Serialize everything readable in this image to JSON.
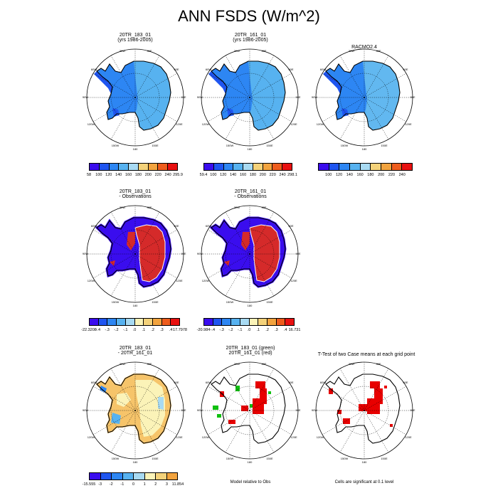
{
  "title": "ANN FSDS (W/m^2)",
  "colors": {
    "abs_scale": [
      "#3a0dee",
      "#1f55f0",
      "#2d86f3",
      "#57b2f0",
      "#a8daf2",
      "#f4d27a",
      "#f2a33e",
      "#ee5c1c",
      "#e81010",
      "#c41010",
      "#9a1a1a"
    ],
    "diff_scale": [
      "#3a0dee",
      "#1f55f0",
      "#2d86f3",
      "#57b2f0",
      "#a8daf2",
      "#fbf3b8",
      "#f4d27a",
      "#f2a33e",
      "#ee5c1c",
      "#e81010",
      "#c41010",
      "#9a1a1a"
    ],
    "grid": "#000000",
    "green": "#10c010",
    "red": "#e80000"
  },
  "lon_labels": [
    "30W",
    "30E",
    "60W",
    "60E",
    "90W",
    "90E",
    "120W",
    "120E",
    "150W",
    "150E",
    "180"
  ],
  "panels": [
    {
      "title": "20TR_183_01",
      "subtitle": "(yrs 1986-2005)",
      "fill": "abs"
    },
    {
      "title": "20TR_161_01",
      "subtitle": "(yrs 1986-2005)",
      "fill": "abs"
    },
    {
      "title": "RACMO2.4",
      "subtitle": "",
      "fill": "abs"
    },
    {
      "title": "20TR_183_01",
      "subtitle": "- Observations",
      "fill": "bias"
    },
    {
      "title": "20TR_161_01",
      "subtitle": "- Observations",
      "fill": "bias"
    },
    {
      "title": "20TR_183_01",
      "subtitle": "- 20TR_161_01",
      "fill": "diff"
    },
    {
      "title": "20TR_183_01 (green)",
      "subtitle": "20TR_161_01 (red)",
      "fill": "compare"
    },
    {
      "title": "T-Test of two Case means at each grid point",
      "subtitle": "",
      "fill": "ttest"
    }
  ],
  "colorbars": [
    {
      "labels": [
        "58",
        "100",
        "120",
        "140",
        "160",
        "180",
        "200",
        "220",
        "240",
        "295.9"
      ]
    },
    {
      "labels": [
        "59.4",
        "100",
        "120",
        "140",
        "160",
        "180",
        "200",
        "220",
        "240",
        "298.1"
      ]
    },
    {
      "labels": [
        "100",
        "120",
        "140",
        "160",
        "180",
        "200",
        "220",
        "240"
      ]
    },
    {
      "labels": [
        "-22.3208",
        "-.4",
        "-.3",
        "-.2",
        "-.1",
        ".0",
        ".1",
        ".2",
        ".3",
        ".4",
        "17.7978"
      ]
    },
    {
      "labels": [
        "-20.984",
        "-.4",
        "-.3",
        "-.2",
        "-.1",
        ".0",
        ".1",
        ".2",
        ".3",
        ".4",
        "16.731"
      ]
    },
    {
      "labels": [
        "-15.555",
        "-3",
        "-2",
        "-1",
        "0",
        "1",
        "2",
        "3",
        "11.854"
      ]
    }
  ],
  "footnotes": {
    "compare": "Model relative to Obs",
    "ttest": "Cells are significant at 0.1 level"
  },
  "chart_data": {
    "type": "heatmap",
    "title": "ANN FSDS (W/m^2)",
    "variable": "FSDS",
    "units": "W/m^2",
    "projection": "south polar stereographic",
    "panels": [
      {
        "name": "20TR_183_01 (yrs 1986-2005)",
        "min": 58,
        "max": 295.9,
        "levels": [
          100,
          120,
          140,
          160,
          180,
          200,
          220,
          240
        ]
      },
      {
        "name": "20TR_161_01 (yrs 1986-2005)",
        "min": 59.4,
        "max": 298.1,
        "levels": [
          100,
          120,
          140,
          160,
          180,
          200,
          220,
          240
        ]
      },
      {
        "name": "RACMO2.4",
        "levels": [
          100,
          120,
          140,
          160,
          180,
          200,
          220,
          240
        ]
      },
      {
        "name": "20TR_183_01 - Observations",
        "min": -22.3208,
        "max": 17.7978,
        "levels": [
          -0.4,
          -0.3,
          -0.2,
          -0.1,
          0,
          0.1,
          0.2,
          0.3,
          0.4
        ]
      },
      {
        "name": "20TR_161_01 - Observations",
        "min": -20.984,
        "max": 16.731,
        "levels": [
          -0.4,
          -0.3,
          -0.2,
          -0.1,
          0,
          0.1,
          0.2,
          0.3,
          0.4
        ]
      },
      {
        "name": "20TR_183_01 - 20TR_161_01",
        "min": -15.555,
        "max": 11.854,
        "levels": [
          -3,
          -2,
          -1,
          0,
          1,
          2,
          3
        ]
      },
      {
        "name": "20TR_183_01 (green) / 20TR_161_01 (red)",
        "note": "Model relative to Obs"
      },
      {
        "name": "T-Test of two Case means at each grid point",
        "note": "Cells are significant at 0.1 level"
      }
    ]
  }
}
